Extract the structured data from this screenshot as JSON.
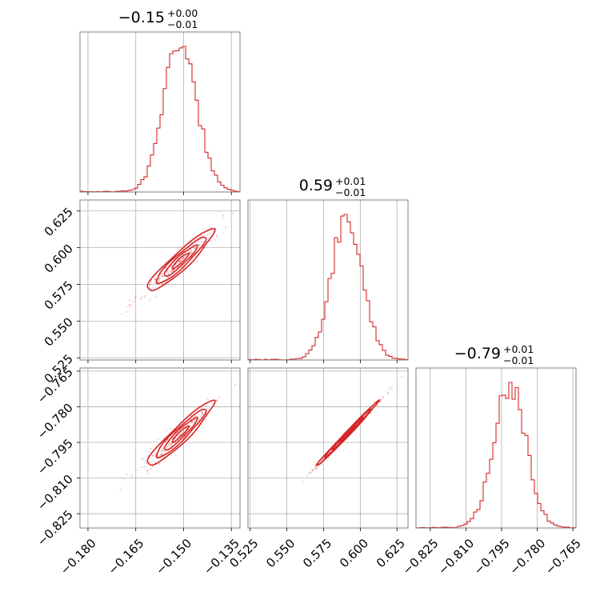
{
  "chart_data": {
    "type": "corner",
    "colors": {
      "main": "#d62728",
      "fill_inner": "#e15759",
      "fill_outer": "#f2a0a0",
      "frame": "#808080",
      "grid": "#b0b0b0"
    },
    "grid": true,
    "parameters": [
      {
        "title_value": "−0.15",
        "title_plus": "+0.00",
        "title_minus": "−0.01",
        "median": -0.151,
        "sigma": 0.0052,
        "range": [
          -0.1825,
          -0.1323
        ],
        "ticks": [
          -0.18,
          -0.165,
          -0.15,
          -0.135
        ],
        "tick_labels": [
          "−0.180",
          "−0.165",
          "−0.150",
          "−0.135"
        ]
      },
      {
        "title_value": "0.59",
        "title_plus": "+0.01",
        "title_minus": "−0.01",
        "median": 0.591,
        "sigma": 0.0105,
        "range": [
          0.5235,
          0.6325
        ],
        "ticks": [
          0.525,
          0.55,
          0.575,
          0.6,
          0.625
        ],
        "tick_labels": [
          "0.525",
          "0.550",
          "0.575",
          "0.600",
          "0.625"
        ]
      },
      {
        "title_value": "−0.79",
        "title_plus": "+0.01",
        "title_minus": "−0.01",
        "median": -0.7915,
        "sigma": 0.0068,
        "range": [
          -0.831,
          -0.7637
        ],
        "ticks": [
          -0.825,
          -0.81,
          -0.795,
          -0.78,
          -0.765
        ],
        "tick_labels": [
          "−0.825",
          "−0.810",
          "−0.795",
          "−0.780",
          "−0.765"
        ]
      }
    ],
    "correlations": {
      "1_0": 0.93,
      "2_0": 0.94,
      "2_1": 0.995
    }
  }
}
